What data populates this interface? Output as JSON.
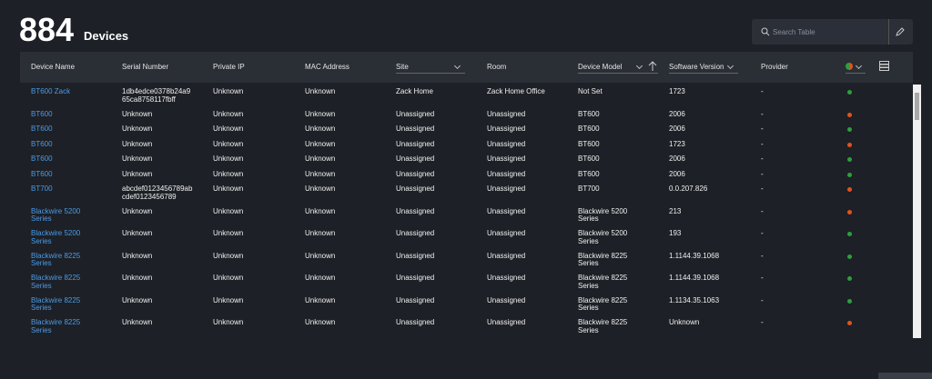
{
  "header": {
    "count": "884",
    "label": "Devices",
    "search_placeholder": "Search Table"
  },
  "table": {
    "columns": [
      "Device Name",
      "Serial Number",
      "Private IP",
      "MAC Address",
      "Site",
      "Room",
      "Device Model",
      "Software Version",
      "Provider"
    ],
    "rows": [
      [
        "BT600 Zack",
        "1db4edce0378b24a965ca8758117fbff",
        "Unknown",
        "Unknown",
        "Zack Home",
        "Zack Home Office",
        "Not Set",
        "1723",
        "-"
      ],
      [
        "BT600",
        "Unknown",
        "Unknown",
        "Unknown",
        "Unassigned",
        "Unassigned",
        "BT600",
        "2006",
        "-"
      ],
      [
        "BT600",
        "Unknown",
        "Unknown",
        "Unknown",
        "Unassigned",
        "Unassigned",
        "BT600",
        "2006",
        "-"
      ],
      [
        "BT600",
        "Unknown",
        "Unknown",
        "Unknown",
        "Unassigned",
        "Unassigned",
        "BT600",
        "1723",
        "-"
      ],
      [
        "BT600",
        "Unknown",
        "Unknown",
        "Unknown",
        "Unassigned",
        "Unassigned",
        "BT600",
        "2006",
        "-"
      ],
      [
        "BT600",
        "Unknown",
        "Unknown",
        "Unknown",
        "Unassigned",
        "Unassigned",
        "BT600",
        "2006",
        "-"
      ],
      [
        "BT700",
        "abcdef0123456789abcdef0123456789",
        "Unknown",
        "Unknown",
        "Unassigned",
        "Unassigned",
        "BT700",
        "0.0.207.826",
        "-"
      ],
      [
        "Blackwire 5200 Series",
        "Unknown",
        "Unknown",
        "Unknown",
        "Unassigned",
        "Unassigned",
        "Blackwire 5200 Series",
        "213",
        "-"
      ],
      [
        "Blackwire 5200 Series",
        "Unknown",
        "Unknown",
        "Unknown",
        "Unassigned",
        "Unassigned",
        "Blackwire 5200 Series",
        "193",
        "-"
      ],
      [
        "Blackwire 8225 Series",
        "Unknown",
        "Unknown",
        "Unknown",
        "Unassigned",
        "Unassigned",
        "Blackwire 8225 Series",
        "1.1144.39.1068",
        "-"
      ],
      [
        "Blackwire 8225 Series",
        "Unknown",
        "Unknown",
        "Unknown",
        "Unassigned",
        "Unassigned",
        "Blackwire 8225 Series",
        "1.1144.39.1068",
        "-"
      ],
      [
        "Blackwire 8225 Series",
        "Unknown",
        "Unknown",
        "Unknown",
        "Unassigned",
        "Unassigned",
        "Blackwire 8225 Series",
        "1.1134.35.1063",
        "-"
      ],
      [
        "Blackwire 8225 Series",
        "Unknown",
        "Unknown",
        "Unknown",
        "Unassigned",
        "Unassigned",
        "Blackwire 8225 Series",
        "Unknown",
        "-"
      ]
    ],
    "status_colors": [
      "#2e9e3e",
      "#e0531f",
      "#2e9e3e",
      "#e0531f",
      "#2e9e3e",
      "#2e9e3e",
      "#e0531f",
      "#e0531f",
      "#2e9e3e",
      "#2e9e3e",
      "#2e9e3e",
      "#2e9e3e",
      "#e0531f"
    ]
  }
}
